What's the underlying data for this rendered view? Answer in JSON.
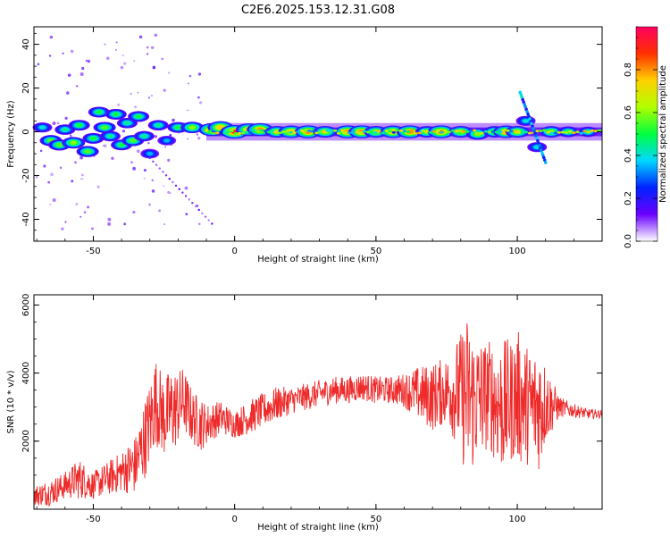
{
  "title": "C2E6.2025.153.12.31.G08",
  "chart_data": [
    {
      "type": "heatmap",
      "xlabel": "Height of straight line (km)",
      "ylabel": "Frequency (Hz)",
      "xlim": [
        -71,
        130
      ],
      "ylim": [
        -50,
        48
      ],
      "xticks": [
        -50,
        0,
        50,
        100
      ],
      "xtick_labels": [
        "-50",
        "0",
        "50",
        "100"
      ],
      "yticks": [
        -40,
        -20,
        0,
        20,
        40
      ],
      "ytick_labels": [
        "-40",
        "-20",
        "0",
        "20",
        "40"
      ],
      "colorbar": {
        "label": "Normalized spectral amplitude",
        "range": [
          0,
          1
        ],
        "ticks": [
          0.0,
          0.2,
          0.4,
          0.6,
          0.8
        ],
        "tick_labels": [
          "0.0",
          "0.2",
          "0.4",
          "0.6",
          "0.8"
        ],
        "colormap": [
          "#ffffff",
          "#6a00ff",
          "#0022ff",
          "#00d8ff",
          "#00ff40",
          "#b0ff00",
          "#ffd000",
          "#ff3000",
          "#ff0060"
        ]
      },
      "blobs": [
        {
          "x": -68,
          "y": 2,
          "amp": 0.35
        },
        {
          "x": -65,
          "y": -4,
          "amp": 0.5
        },
        {
          "x": -62,
          "y": -6,
          "amp": 0.5
        },
        {
          "x": -60,
          "y": 1,
          "amp": 0.4
        },
        {
          "x": -57,
          "y": -5,
          "amp": 0.55
        },
        {
          "x": -55,
          "y": 3,
          "amp": 0.45
        },
        {
          "x": -52,
          "y": -9,
          "amp": 0.5
        },
        {
          "x": -50,
          "y": -3,
          "amp": 0.45
        },
        {
          "x": -48,
          "y": 9,
          "amp": 0.45
        },
        {
          "x": -46,
          "y": 2,
          "amp": 0.5
        },
        {
          "x": -44,
          "y": -2,
          "amp": 0.4
        },
        {
          "x": -42,
          "y": 8,
          "amp": 0.45
        },
        {
          "x": -40,
          "y": -6,
          "amp": 0.45
        },
        {
          "x": -38,
          "y": 4,
          "amp": 0.4
        },
        {
          "x": -36,
          "y": -4,
          "amp": 0.5
        },
        {
          "x": -34,
          "y": 7,
          "amp": 0.45
        },
        {
          "x": -32,
          "y": -2,
          "amp": 0.4
        },
        {
          "x": -30,
          "y": -10,
          "amp": 0.3
        },
        {
          "x": -27,
          "y": 3,
          "amp": 0.4
        },
        {
          "x": -24,
          "y": -4,
          "amp": 0.3
        },
        {
          "x": -20,
          "y": 2,
          "amp": 0.45
        },
        {
          "x": -15,
          "y": 2,
          "amp": 0.55
        },
        {
          "x": -8,
          "y": 1,
          "amp": 0.75
        },
        {
          "x": -5,
          "y": 2,
          "amp": 0.7
        },
        {
          "x": 0,
          "y": 0,
          "amp": 0.85
        },
        {
          "x": 5,
          "y": 1,
          "amp": 0.7
        },
        {
          "x": 9,
          "y": 1,
          "amp": 0.75
        },
        {
          "x": 15,
          "y": 0,
          "amp": 0.6
        },
        {
          "x": 20,
          "y": 0,
          "amp": 0.7
        },
        {
          "x": 26,
          "y": 0,
          "amp": 0.75
        },
        {
          "x": 32,
          "y": 0,
          "amp": 0.6
        },
        {
          "x": 40,
          "y": 0,
          "amp": 0.75
        },
        {
          "x": 45,
          "y": 0,
          "amp": 0.75
        },
        {
          "x": 50,
          "y": 0,
          "amp": 0.6
        },
        {
          "x": 56,
          "y": 0,
          "amp": 0.7
        },
        {
          "x": 62,
          "y": 0,
          "amp": 0.75
        },
        {
          "x": 68,
          "y": 0,
          "amp": 0.55
        },
        {
          "x": 73,
          "y": 0,
          "amp": 0.75
        },
        {
          "x": 80,
          "y": 0,
          "amp": 0.6
        },
        {
          "x": 86,
          "y": -1,
          "amp": 0.55
        },
        {
          "x": 92,
          "y": 0,
          "amp": 0.55
        },
        {
          "x": 96,
          "y": 0,
          "amp": 0.7
        },
        {
          "x": 100,
          "y": 0,
          "amp": 0.6
        },
        {
          "x": 103,
          "y": 5,
          "amp": 0.35
        },
        {
          "x": 107,
          "y": -7,
          "amp": 0.35
        },
        {
          "x": 112,
          "y": 0,
          "amp": 0.55
        },
        {
          "x": 118,
          "y": 0,
          "amp": 0.45
        },
        {
          "x": 125,
          "y": 0,
          "amp": 0.4
        }
      ]
    },
    {
      "type": "line",
      "xlabel": "Height of straight line (km)",
      "ylabel": "SNR (10 * v/v)",
      "xlim": [
        -71,
        130
      ],
      "ylim": [
        0,
        6300
      ],
      "xticks": [
        -50,
        0,
        50,
        100
      ],
      "xtick_labels": [
        "-50",
        "0",
        "50",
        "100"
      ],
      "yticks": [
        2000,
        4000,
        6000
      ],
      "ytick_labels": [
        "2000",
        "4000",
        "6000"
      ],
      "color": "#ee2a2a",
      "series": [
        {
          "x": [
            -71,
            -65,
            -60,
            -55,
            -50,
            -45,
            -40,
            -35,
            -30,
            -28,
            -25,
            -22,
            -20,
            -18,
            -15,
            -12,
            -10,
            -5,
            0,
            5,
            10,
            15,
            20,
            25,
            30,
            35,
            40,
            45,
            50,
            55,
            60,
            65,
            70,
            75,
            80,
            82,
            85,
            88,
            90,
            92,
            95,
            98,
            100,
            103,
            105,
            108,
            110,
            115,
            120,
            125,
            130
          ],
          "y": [
            400,
            500,
            700,
            900,
            700,
            900,
            1100,
            1300,
            2500,
            3200,
            2700,
            2900,
            3000,
            3200,
            2700,
            2500,
            2500,
            2700,
            2500,
            2700,
            2900,
            3100,
            3200,
            3300,
            3400,
            3500,
            3500,
            3600,
            3500,
            3500,
            3500,
            3400,
            3300,
            3500,
            3400,
            3300,
            3200,
            3300,
            3400,
            3200,
            3000,
            3200,
            3300,
            3100,
            3000,
            3000,
            3100,
            3000,
            2900,
            2800,
            2800
          ],
          "spread": [
            300,
            400,
            400,
            600,
            400,
            500,
            600,
            900,
            1300,
            1300,
            1200,
            1300,
            1100,
            1000,
            800,
            800,
            600,
            500,
            400,
            500,
            500,
            500,
            400,
            400,
            400,
            400,
            400,
            400,
            400,
            400,
            500,
            800,
            1000,
            1000,
            1800,
            2500,
            2000,
            1700,
            1600,
            1800,
            2000,
            1800,
            2000,
            1800,
            1700,
            1900,
            1200,
            300,
            200,
            150,
            120
          ]
        }
      ]
    }
  ]
}
